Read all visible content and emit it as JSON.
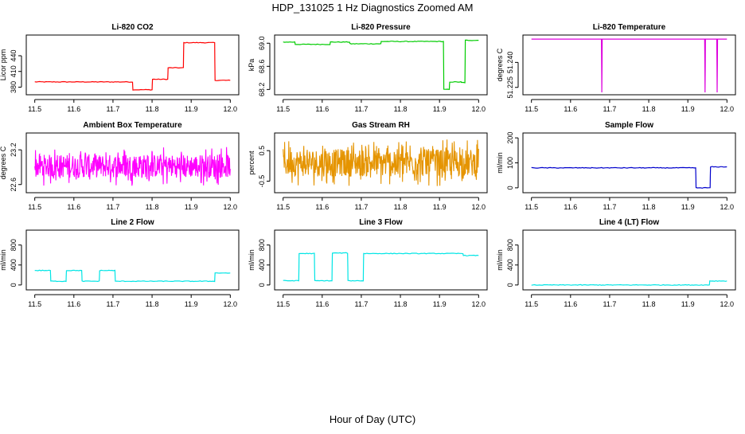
{
  "figure": {
    "title": "HDP_131025  1 Hz Diagnostics Zoomed AM",
    "xlabel": "Hour of Day (UTC)"
  },
  "chart_data": [
    {
      "type": "line",
      "title": "Li-820 CO2",
      "ylabel": "Licor ppm",
      "color": "#ff0000",
      "noise": "low",
      "xlim": [
        11.5,
        12.0
      ],
      "ylim": [
        370,
        475
      ],
      "xticks": [
        "11.5",
        "11.6",
        "11.7",
        "11.8",
        "11.9",
        "12.0"
      ],
      "yticks": [
        380,
        410,
        440
      ],
      "series": [
        {
          "x": [
            11.5,
            11.75,
            11.751,
            11.8,
            11.801,
            11.84,
            11.841,
            11.88,
            11.881,
            11.96,
            11.961,
            12.0
          ],
          "y": [
            390,
            390,
            375,
            375,
            395,
            395,
            417,
            417,
            465,
            465,
            393,
            393
          ]
        }
      ]
    },
    {
      "type": "line",
      "title": "Li-820 Pressure",
      "ylabel": "kPa",
      "color": "#00cc00",
      "noise": "low",
      "xlim": [
        11.5,
        12.0
      ],
      "ylim": [
        68.15,
        69.1
      ],
      "xticks": [
        "11.5",
        "11.6",
        "11.7",
        "11.8",
        "11.9",
        "12.0"
      ],
      "yticks": [
        "68.2",
        "68.6",
        "69.0"
      ],
      "series": [
        {
          "x": [
            11.5,
            11.53,
            11.531,
            11.62,
            11.621,
            11.67,
            11.671,
            11.75,
            11.751,
            11.91,
            11.911,
            11.925,
            11.926,
            11.955,
            11.956,
            11.965,
            11.966,
            12.0
          ],
          "y": [
            69.02,
            69.02,
            68.98,
            68.98,
            69.02,
            69.02,
            68.99,
            68.99,
            69.03,
            69.03,
            68.2,
            68.2,
            68.33,
            68.33,
            68.32,
            68.32,
            69.05,
            69.05
          ]
        }
      ]
    },
    {
      "type": "line",
      "title": "Li-820 Temperature",
      "ylabel": "degrees C",
      "color": "#dd00dd",
      "noise": "none",
      "xlim": [
        11.5,
        12.0
      ],
      "ylim": [
        51.222,
        51.255
      ],
      "xticks": [
        "11.5",
        "11.6",
        "11.7",
        "11.8",
        "11.9",
        "12.0"
      ],
      "yticks": [
        "51.225",
        "51.240"
      ],
      "series": [
        {
          "x": [
            11.5,
            11.679,
            11.68,
            11.681,
            11.943,
            11.944,
            11.945,
            11.974,
            11.975,
            11.976,
            12.0
          ],
          "y": [
            51.254,
            51.254,
            51.222,
            51.254,
            51.254,
            51.222,
            51.254,
            51.254,
            51.222,
            51.254,
            51.254
          ]
        }
      ]
    },
    {
      "type": "line",
      "title": "Ambient Box Temperature",
      "ylabel": "degrees C",
      "color": "#ff00ff",
      "noise": "heavy",
      "xlim": [
        11.5,
        12.0
      ],
      "ylim": [
        22.5,
        23.45
      ],
      "xticks": [
        "11.5",
        "11.6",
        "11.7",
        "11.8",
        "11.9",
        "12.0"
      ],
      "yticks": [
        "22.6",
        "23.2"
      ],
      "series": [
        {
          "x": [
            11.5,
            12.0
          ],
          "y": [
            22.92,
            22.92
          ],
          "spread": 0.2
        }
      ]
    },
    {
      "type": "line",
      "title": "Gas Stream RH",
      "ylabel": "percent",
      "color": "#e59400",
      "noise": "heavy",
      "xlim": [
        11.5,
        12.0
      ],
      "ylim": [
        -0.8,
        1.0
      ],
      "xticks": [
        "11.5",
        "11.6",
        "11.7",
        "11.8",
        "11.9",
        "12.0"
      ],
      "yticks": [
        "-0.5",
        "0.5"
      ],
      "series": [
        {
          "x": [
            11.5,
            12.0
          ],
          "y": [
            0.1,
            0.1
          ],
          "spread": 0.45
        }
      ]
    },
    {
      "type": "line",
      "title": "Sample Flow",
      "ylabel": "ml/min",
      "color": "#0000cc",
      "noise": "low",
      "xlim": [
        11.5,
        12.0
      ],
      "ylim": [
        -10,
        210
      ],
      "xticks": [
        "11.5",
        "11.6",
        "11.7",
        "11.8",
        "11.9",
        "12.0"
      ],
      "yticks": [
        0,
        100,
        200
      ],
      "series": [
        {
          "x": [
            11.5,
            11.92,
            11.921,
            11.957,
            11.958,
            12.0
          ],
          "y": [
            80,
            80,
            0,
            0,
            84,
            84
          ]
        }
      ]
    },
    {
      "type": "line",
      "title": "Line 2 Flow",
      "ylabel": "ml/min",
      "color": "#00e5e5",
      "noise": "low",
      "xlim": [
        11.5,
        12.0
      ],
      "ylim": [
        -50,
        1050
      ],
      "xticks": [
        "11.5",
        "11.6",
        "11.7",
        "11.8",
        "11.9",
        "12.0"
      ],
      "yticks": [
        0,
        400,
        800
      ],
      "series": [
        {
          "x": [
            11.5,
            11.54,
            11.541,
            11.58,
            11.581,
            11.62,
            11.621,
            11.665,
            11.666,
            11.705,
            11.706,
            11.96,
            11.961,
            12.0
          ],
          "y": [
            290,
            290,
            75,
            75,
            290,
            290,
            75,
            75,
            290,
            290,
            75,
            75,
            240,
            240
          ]
        }
      ]
    },
    {
      "type": "line",
      "title": "Line 3 Flow",
      "ylabel": "ml/min",
      "color": "#00e5e5",
      "noise": "low",
      "xlim": [
        11.5,
        12.0
      ],
      "ylim": [
        -50,
        1050
      ],
      "xticks": [
        "11.5",
        "11.6",
        "11.7",
        "11.8",
        "11.9",
        "12.0"
      ],
      "yticks": [
        0,
        400,
        800
      ],
      "series": [
        {
          "x": [
            11.5,
            11.54,
            11.541,
            11.58,
            11.581,
            11.625,
            11.626,
            11.665,
            11.666,
            11.705,
            11.706,
            11.96,
            11.961,
            12.0
          ],
          "y": [
            85,
            85,
            630,
            630,
            85,
            85,
            640,
            640,
            85,
            85,
            630,
            630,
            590,
            590
          ]
        }
      ]
    },
    {
      "type": "line",
      "title": "Line 4 (LT) Flow",
      "ylabel": "ml/min",
      "color": "#00e5e5",
      "noise": "low",
      "xlim": [
        11.5,
        12.0
      ],
      "ylim": [
        -50,
        1050
      ],
      "xticks": [
        "11.5",
        "11.6",
        "11.7",
        "11.8",
        "11.9",
        "12.0"
      ],
      "yticks": [
        0,
        400,
        800
      ],
      "series": [
        {
          "x": [
            11.5,
            11.955,
            11.956,
            12.0
          ],
          "y": [
            0,
            0,
            80,
            80
          ]
        }
      ]
    }
  ]
}
